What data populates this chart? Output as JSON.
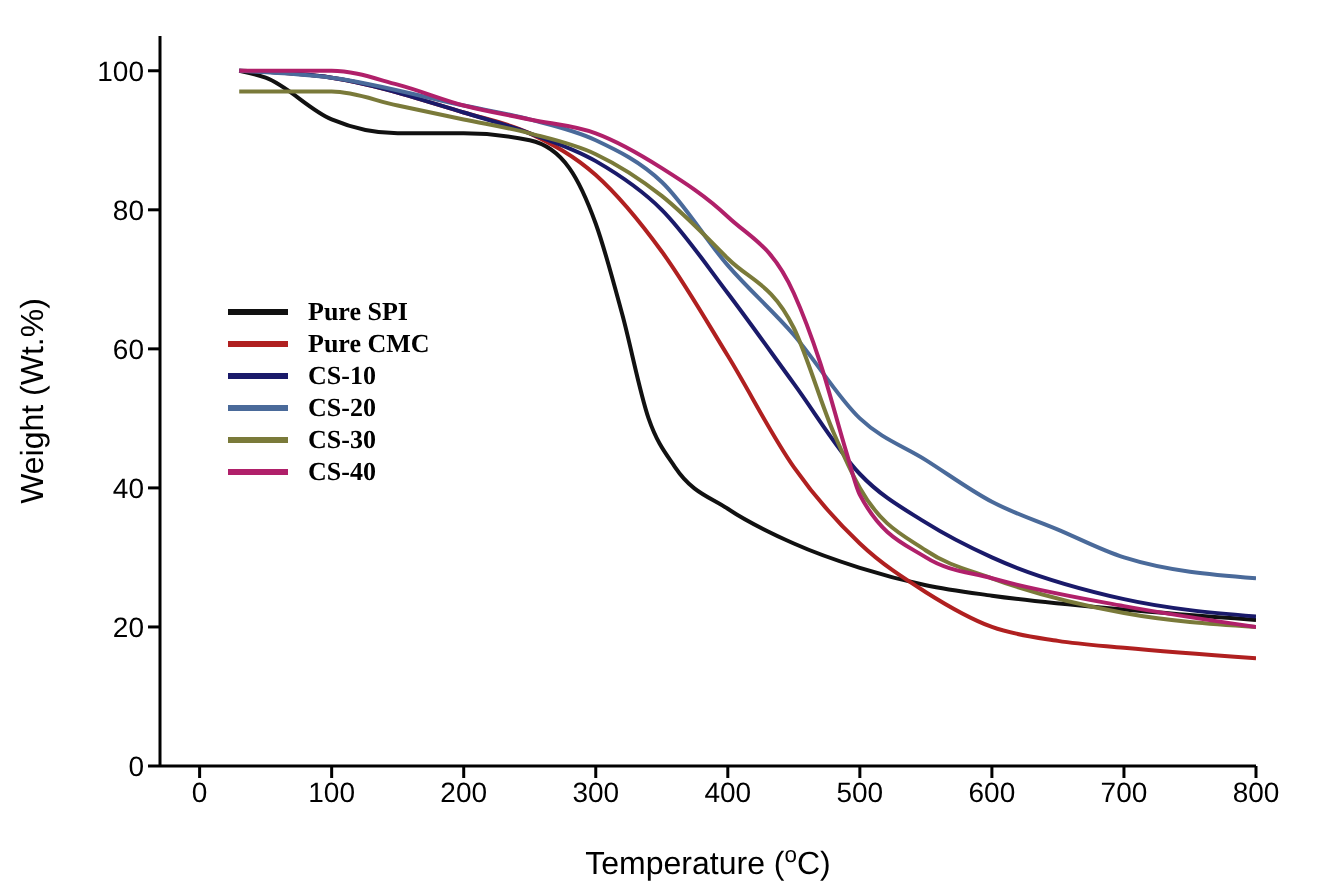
{
  "chart_data": {
    "type": "line",
    "xlabel": "Temperature ($^{o}$C)",
    "ylabel": "Weight (Wt.%)",
    "xlim": [
      -30,
      800
    ],
    "ylim": [
      0,
      105
    ],
    "xticks": [
      0,
      100,
      200,
      300,
      400,
      500,
      600,
      700,
      800
    ],
    "yticks": [
      0,
      20,
      40,
      60,
      80,
      100
    ],
    "grid": false,
    "legend": "left",
    "marker": "none",
    "line_style": "solid",
    "series": [
      {
        "name": "Pure SPI",
        "color": "#111111",
        "x": [
          30,
          50,
          100,
          150,
          200,
          250,
          280,
          300,
          320,
          340,
          360,
          400,
          450,
          500,
          550,
          600,
          700,
          800
        ],
        "values": [
          100,
          99,
          93,
          91,
          91,
          90,
          86,
          78,
          65,
          50,
          43,
          37,
          32,
          28.5,
          26,
          24.5,
          22.5,
          21
        ]
      },
      {
        "name": "Pure CMC",
        "color": "#b02020",
        "x": [
          30,
          100,
          200,
          250,
          300,
          350,
          400,
          450,
          500,
          550,
          600,
          650,
          700,
          800
        ],
        "values": [
          100,
          99,
          94,
          91,
          85,
          74,
          59,
          43,
          32,
          25,
          20,
          18,
          17,
          15.5
        ]
      },
      {
        "name": "CS-10",
        "color": "#1a1a6a",
        "x": [
          30,
          100,
          200,
          250,
          300,
          350,
          400,
          450,
          500,
          550,
          600,
          700,
          800
        ],
        "values": [
          100,
          99,
          94,
          91,
          87,
          80,
          68,
          55,
          42,
          35,
          30,
          24,
          21.5
        ]
      },
      {
        "name": "CS-20",
        "color": "#4a6a9a",
        "x": [
          30,
          100,
          200,
          250,
          300,
          350,
          400,
          450,
          500,
          550,
          600,
          650,
          700,
          800
        ],
        "values": [
          100,
          99,
          95,
          93,
          90,
          84,
          72,
          62,
          50,
          44,
          38,
          34,
          30,
          27
        ]
      },
      {
        "name": "CS-30",
        "color": "#7a7a3a",
        "x": [
          30,
          100,
          150,
          200,
          250,
          300,
          350,
          400,
          450,
          480,
          500,
          550,
          600,
          700,
          800
        ],
        "values": [
          97,
          97,
          95,
          93,
          91,
          88,
          82,
          73,
          63,
          48,
          40,
          31,
          27,
          22,
          20
        ]
      },
      {
        "name": "CS-40",
        "color": "#b0206a",
        "x": [
          30,
          100,
          150,
          200,
          250,
          300,
          350,
          400,
          450,
          470,
          490,
          500,
          550,
          600,
          700,
          800
        ],
        "values": [
          100,
          100,
          98,
          95,
          93,
          91,
          86,
          79,
          68,
          58,
          45,
          39,
          30,
          27,
          23,
          20
        ]
      }
    ]
  }
}
